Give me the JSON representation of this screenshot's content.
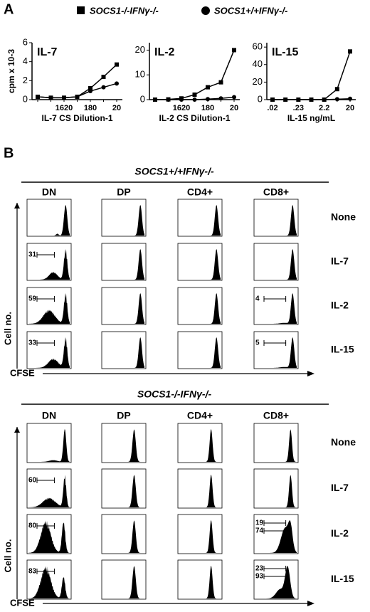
{
  "panel_labels": [
    "A",
    "B"
  ],
  "chart_data": [
    {
      "type": "line",
      "title": "IL-7",
      "y_label": "cpm x 10-3",
      "x_label": "IL-7 CS Dilution-1",
      "categories": [
        null,
        null,
        "1620",
        null,
        "180",
        null,
        "20"
      ],
      "series": [
        {
          "name": "SOCS1-/-IFNγ-/-",
          "color": "#000000",
          "marker": "square",
          "values": [
            0.3,
            0.2,
            0.2,
            0.3,
            1.2,
            2.4,
            3.7
          ]
        },
        {
          "name": "SOCS1+/+IFNγ-/-",
          "color": "#000000",
          "marker": "circle",
          "values": [
            0.3,
            0.2,
            0.2,
            0.3,
            0.9,
            1.3,
            1.7
          ]
        }
      ],
      "ylim": [
        0,
        6
      ],
      "yticks": [
        0,
        2,
        4,
        6
      ]
    },
    {
      "type": "line",
      "title": "IL-2",
      "x_label": "IL-2 CS Dilution-1",
      "categories": [
        null,
        null,
        "1620",
        null,
        "180",
        null,
        "20"
      ],
      "series": [
        {
          "color": "#000000",
          "marker": "square",
          "values": [
            0,
            0.1,
            0.5,
            2,
            5,
            7,
            20
          ]
        },
        {
          "color": "#000000",
          "marker": "circle",
          "values": [
            0,
            0,
            0,
            0,
            0.2,
            0.5,
            1
          ]
        }
      ],
      "ylim": [
        0,
        23
      ],
      "yticks": [
        0,
        10,
        20
      ]
    },
    {
      "type": "line",
      "title": "IL-15",
      "x_label": "IL-15 ng/mL",
      "categories": [
        ".02",
        null,
        ".23",
        null,
        "2.2",
        null,
        "20"
      ],
      "series": [
        {
          "color": "#000000",
          "marker": "square",
          "values": [
            0,
            0,
            0,
            0,
            0,
            12,
            55
          ]
        },
        {
          "color": "#000000",
          "marker": "circle",
          "values": [
            0,
            0,
            0,
            0,
            0,
            0.5,
            1
          ]
        }
      ],
      "ylim": [
        0,
        65
      ],
      "yticks": [
        0,
        20,
        40,
        60
      ]
    }
  ],
  "histograms": {
    "y_label": "Cell no.",
    "x_label": "CFSE",
    "groups": [
      {
        "title": "SOCS1+/+IFNγ-/-",
        "columns": [
          "DN",
          "DP",
          "CD4+",
          "CD8+"
        ],
        "rows": [
          {
            "label": "None",
            "cells": [
              [],
              [],
              [],
              []
            ]
          },
          {
            "label": "IL-7",
            "cells": [
              [
                31
              ],
              [],
              [],
              []
            ]
          },
          {
            "label": "IL-2",
            "cells": [
              [
                59
              ],
              [],
              [],
              [
                4
              ]
            ]
          },
          {
            "label": "IL-15",
            "cells": [
              [
                33
              ],
              [],
              [],
              [
                5
              ]
            ]
          }
        ]
      },
      {
        "title": "SOCS1-/-IFNγ-/-",
        "columns": [
          "DN",
          "DP",
          "CD4+",
          "CD8+"
        ],
        "rows": [
          {
            "label": "None",
            "cells": [
              [],
              [],
              [],
              []
            ]
          },
          {
            "label": "IL-7",
            "cells": [
              [
                60
              ],
              [],
              [],
              []
            ]
          },
          {
            "label": "IL-2",
            "cells": [
              [
                80
              ],
              [],
              [],
              [
                19,
                74
              ]
            ]
          },
          {
            "label": "IL-15",
            "cells": [
              [
                83
              ],
              [],
              [],
              [
                23,
                93
              ]
            ]
          }
        ]
      }
    ]
  }
}
